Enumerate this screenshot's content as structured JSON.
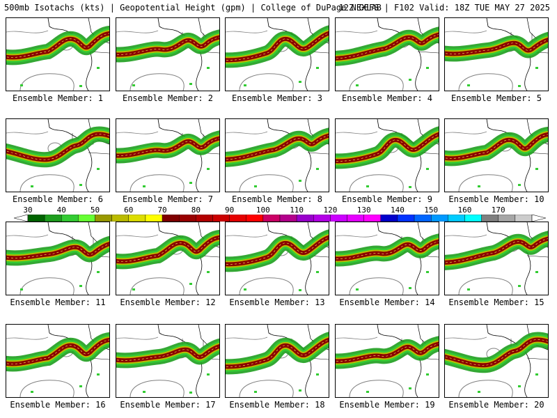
{
  "header": {
    "left": "500mb Isotachs (kts) | Geopotential Height (gpm) | College of DuPage NEXLAB",
    "right": "12Z GEFS | F102 Valid: 18Z TUE MAY 27 2025"
  },
  "members": [
    {
      "label": "Ensemble Member: 1",
      "variant": 0
    },
    {
      "label": "Ensemble Member: 2",
      "variant": 1
    },
    {
      "label": "Ensemble Member: 3",
      "variant": 2
    },
    {
      "label": "Ensemble Member: 4",
      "variant": 3
    },
    {
      "label": "Ensemble Member: 5",
      "variant": 4
    },
    {
      "label": "Ensemble Member: 6",
      "variant": 5
    },
    {
      "label": "Ensemble Member: 7",
      "variant": 1
    },
    {
      "label": "Ensemble Member: 8",
      "variant": 3
    },
    {
      "label": "Ensemble Member: 9",
      "variant": 2
    },
    {
      "label": "Ensemble Member: 10",
      "variant": 0
    },
    {
      "label": "Ensemble Member: 11",
      "variant": 4
    },
    {
      "label": "Ensemble Member: 12",
      "variant": 0
    },
    {
      "label": "Ensemble Member: 13",
      "variant": 2
    },
    {
      "label": "Ensemble Member: 14",
      "variant": 1
    },
    {
      "label": "Ensemble Member: 15",
      "variant": 3
    },
    {
      "label": "Ensemble Member: 16",
      "variant": 0
    },
    {
      "label": "Ensemble Member: 17",
      "variant": 4
    },
    {
      "label": "Ensemble Member: 18",
      "variant": 2
    },
    {
      "label": "Ensemble Member: 19",
      "variant": 1
    },
    {
      "label": "Ensemble Member: 20",
      "variant": 5
    }
  ],
  "colorbar": {
    "labels": [
      "30",
      "40",
      "50",
      "60",
      "70",
      "80",
      "90",
      "100",
      "110",
      "120",
      "130",
      "140",
      "150",
      "160",
      "170"
    ],
    "colors": [
      "#006400",
      "#1e9e1e",
      "#33cc33",
      "#66ff33",
      "#999900",
      "#bbbb00",
      "#dddd00",
      "#ffff00",
      "#800000",
      "#990000",
      "#b30000",
      "#cc0000",
      "#e60000",
      "#ff0000",
      "#cc0066",
      "#b3008c",
      "#9900cc",
      "#b300e6",
      "#cc00ff",
      "#e600ff",
      "#ff00ff",
      "#0000cc",
      "#0033ff",
      "#0066ff",
      "#0099ff",
      "#00ccff",
      "#00ffff",
      "#808080",
      "#a6a6a6",
      "#cccccc"
    ]
  },
  "legend_colors": {
    "jet_outer": "#1e9e1e",
    "jet_mid": "#bbbb00",
    "jet_core": "#8b0000",
    "height_contour": "#808080",
    "coastline": "#000000"
  }
}
